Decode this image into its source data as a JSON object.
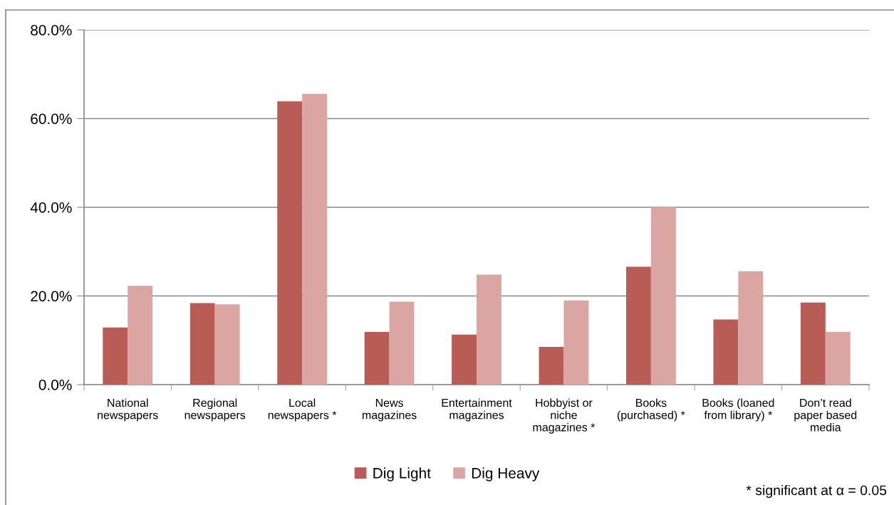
{
  "chart_data": {
    "type": "bar",
    "categories": [
      "National\nnewspapers",
      "Regional\nnewspapers",
      "Local\nnewspapers *",
      "News\nmagazines",
      "Entertainment\nmagazines",
      "Hobbyist or\nniche\nmagazines *",
      "Books\n(purchased) *",
      "Books (loaned\nfrom library) *",
      "Don’t read\npaper based\nmedia"
    ],
    "series": [
      {
        "name": "Dig Light",
        "color": "#b95c55",
        "values": [
          12.9,
          18.4,
          63.9,
          11.9,
          11.3,
          8.5,
          26.6,
          14.7,
          18.5
        ]
      },
      {
        "name": "Dig Heavy",
        "color": "#dba6a2",
        "values": [
          22.3,
          18.1,
          65.6,
          18.7,
          24.8,
          19.0,
          40.1,
          25.6,
          11.9
        ]
      }
    ],
    "ylim": [
      0,
      80
    ],
    "yticks": [
      {
        "value": 0,
        "label": "0.0%"
      },
      {
        "value": 20,
        "label": "20.0%"
      },
      {
        "value": 40,
        "label": "40.0%"
      },
      {
        "value": 60,
        "label": "60.0%"
      },
      {
        "value": 80,
        "label": "80.0%"
      }
    ],
    "grid": "y",
    "legend": "bottom",
    "annotations": [
      "* significant at α = 0.05"
    ]
  }
}
